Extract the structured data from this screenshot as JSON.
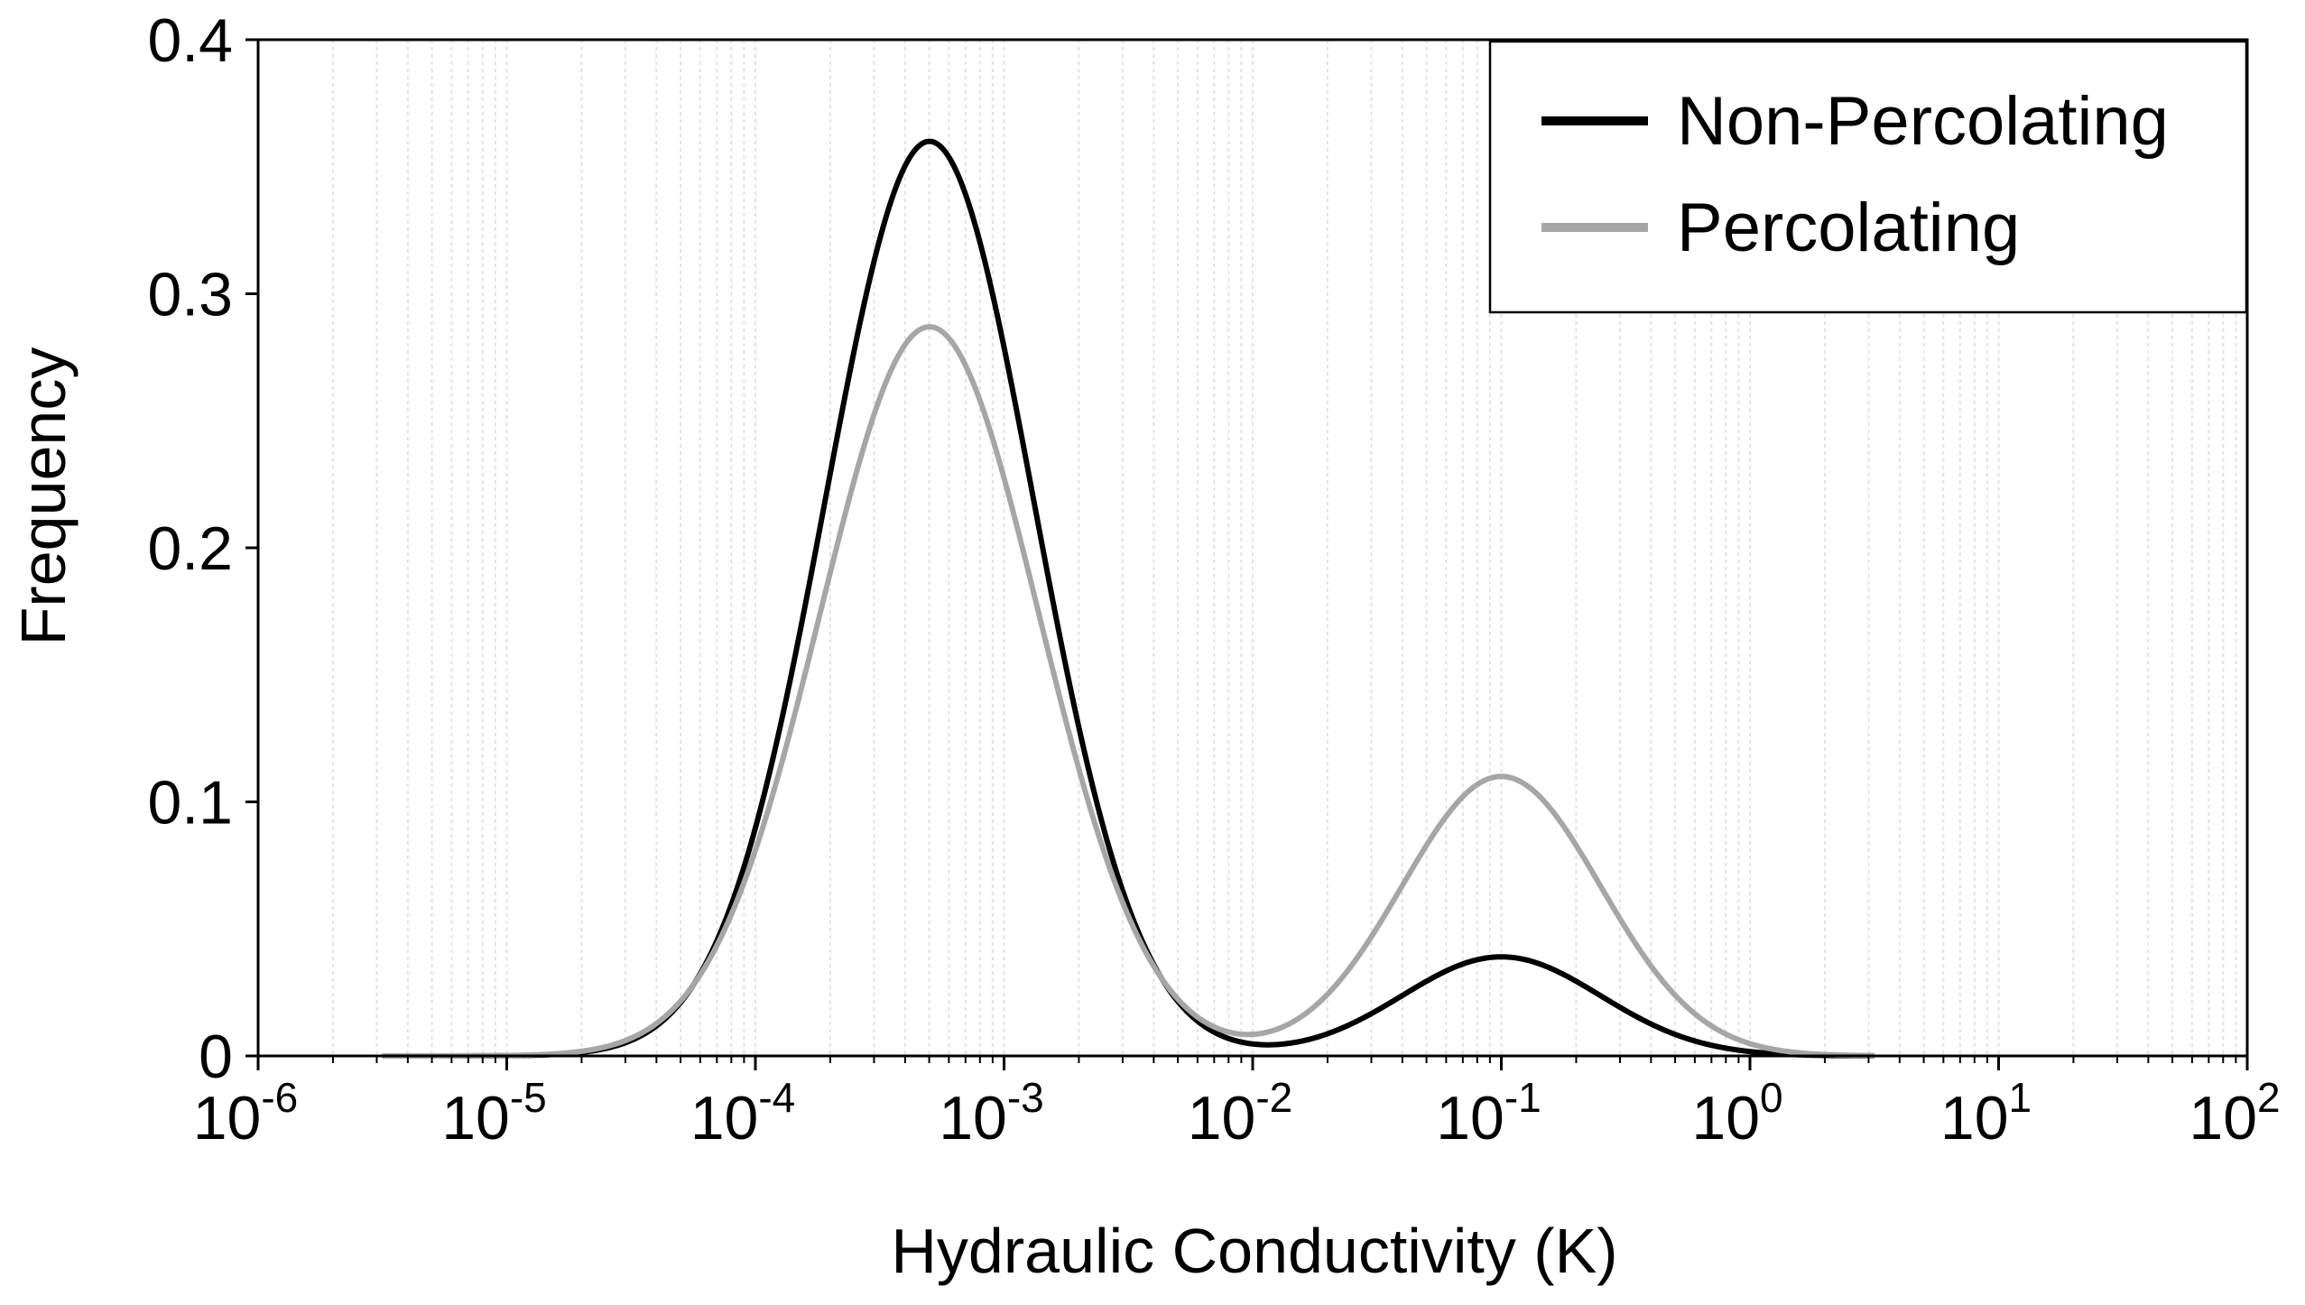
{
  "chart_data": {
    "type": "line",
    "title": "",
    "xlabel": "Hydraulic Conductivity (K)",
    "ylabel": "Frequency",
    "x_scale": "log10",
    "xlim_exponent": [
      -6,
      2
    ],
    "ylim": [
      0,
      0.4
    ],
    "x_tick_labels": [
      {
        "base": "10",
        "exp": "-6"
      },
      {
        "base": "10",
        "exp": "-5"
      },
      {
        "base": "10",
        "exp": "-4"
      },
      {
        "base": "10",
        "exp": "-3"
      },
      {
        "base": "10",
        "exp": "-2"
      },
      {
        "base": "10",
        "exp": "-1"
      },
      {
        "base": "10",
        "exp": "0"
      },
      {
        "base": "10",
        "exp": "1"
      },
      {
        "base": "10",
        "exp": "2"
      }
    ],
    "y_ticks": [
      {
        "value": 0,
        "label": "0"
      },
      {
        "value": 0.1,
        "label": "0.1"
      },
      {
        "value": 0.2,
        "label": "0.2"
      },
      {
        "value": 0.3,
        "label": "0.3"
      },
      {
        "value": 0.4,
        "label": "0.4"
      }
    ],
    "grid": "vertical minor log gridlines",
    "legend_position": "top-right",
    "series": [
      {
        "name": "Non-Percolating",
        "color": "#000000",
        "components": [
          {
            "peak": 0.36,
            "center_log10": -3.3,
            "sigma_log10": 0.42
          },
          {
            "peak": 0.039,
            "center_log10": -1.0,
            "sigma_log10": 0.4
          }
        ],
        "x_log10_range": [
          -5.5,
          0.5
        ]
      },
      {
        "name": "Percolating",
        "color": "#a6a6a6",
        "components": [
          {
            "peak": 0.287,
            "center_log10": -3.3,
            "sigma_log10": 0.44
          },
          {
            "peak": 0.11,
            "center_log10": -1.0,
            "sigma_log10": 0.4
          }
        ],
        "x_log10_range": [
          -5.5,
          0.5
        ]
      }
    ]
  }
}
